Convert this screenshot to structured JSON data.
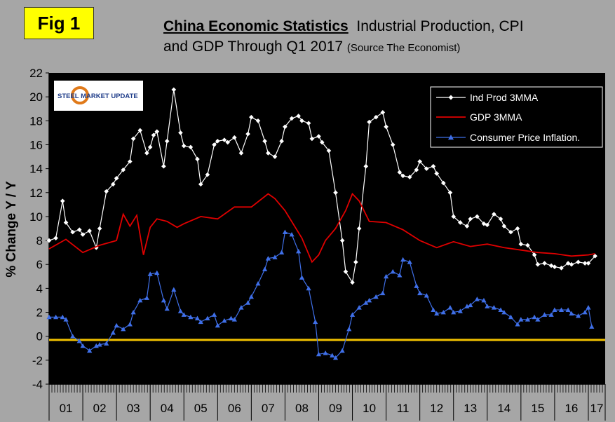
{
  "figure_label": "Fig 1",
  "title": {
    "main": "China Economic Statistics",
    "rest": "Industrial Production, CPI",
    "line2": "and GDP Through Q1 2017",
    "source": "(Source The Economist)"
  },
  "logo": {
    "text": "STEEL MARKET UPDATE"
  },
  "colors": {
    "page": "#a6a6a6",
    "plot": "#000000",
    "ind_prod": "#ffffff",
    "gdp": "#e00000",
    "cpi": "#3f6fe8",
    "zero_line": "#f2c200"
  },
  "chart_data": {
    "type": "line",
    "title": "China Economic Statistics Industrial Production, CPI and GDP Through Q1 2017",
    "ylabel": "% Change Y / Y",
    "xlabel": "",
    "ylim": [
      -4,
      22
    ],
    "yticks": [
      -4,
      -2,
      0,
      2,
      4,
      6,
      8,
      10,
      12,
      14,
      16,
      18,
      20,
      22
    ],
    "xlim": [
      2001,
      2017.5
    ],
    "year_labels": [
      "01",
      "02",
      "03",
      "04",
      "05",
      "06",
      "07",
      "08",
      "09",
      "10",
      "11",
      "12",
      "13",
      "14",
      "15",
      "16",
      "17"
    ],
    "grid": false,
    "legend_position": "top-right",
    "series": [
      {
        "name": "Ind Prod 3MMA",
        "marker": "diamond",
        "x": [
          2001.0,
          2001.2,
          2001.4,
          2001.5,
          2001.7,
          2001.9,
          2002.0,
          2002.2,
          2002.4,
          2002.5,
          2002.7,
          2002.9,
          2003.0,
          2003.2,
          2003.4,
          2003.5,
          2003.7,
          2003.9,
          2004.0,
          2004.1,
          2004.2,
          2004.4,
          2004.5,
          2004.7,
          2004.9,
          2005.0,
          2005.2,
          2005.4,
          2005.5,
          2005.7,
          2005.9,
          2006.0,
          2006.2,
          2006.3,
          2006.5,
          2006.7,
          2006.9,
          2007.0,
          2007.2,
          2007.4,
          2007.5,
          2007.7,
          2007.9,
          2008.0,
          2008.2,
          2008.4,
          2008.5,
          2008.7,
          2008.8,
          2009.0,
          2009.1,
          2009.3,
          2009.5,
          2009.7,
          2009.8,
          2010.0,
          2010.1,
          2010.2,
          2010.4,
          2010.5,
          2010.7,
          2010.9,
          2011.0,
          2011.2,
          2011.4,
          2011.5,
          2011.7,
          2011.9,
          2012.0,
          2012.2,
          2012.4,
          2012.5,
          2012.7,
          2012.9,
          2013.0,
          2013.2,
          2013.4,
          2013.5,
          2013.7,
          2013.9,
          2014.0,
          2014.2,
          2014.4,
          2014.5,
          2014.7,
          2014.9,
          2015.0,
          2015.2,
          2015.4,
          2015.5,
          2015.7,
          2015.9,
          2016.0,
          2016.2,
          2016.4,
          2016.5,
          2016.7,
          2016.9,
          2017.0,
          2017.2
        ],
        "values": [
          8.0,
          8.2,
          11.3,
          9.5,
          8.7,
          8.9,
          8.5,
          8.8,
          7.4,
          9.0,
          12.1,
          12.7,
          13.2,
          13.9,
          14.6,
          16.5,
          17.2,
          15.3,
          15.8,
          16.8,
          17.1,
          14.2,
          16.3,
          20.6,
          17.0,
          15.9,
          15.8,
          14.8,
          12.7,
          13.5,
          16.0,
          16.3,
          16.4,
          16.2,
          16.6,
          15.3,
          16.9,
          18.3,
          18.0,
          16.3,
          15.3,
          15.0,
          16.3,
          17.5,
          18.2,
          18.4,
          18.0,
          17.8,
          16.5,
          16.7,
          16.2,
          15.5,
          12.0,
          8.0,
          5.4,
          4.5,
          6.2,
          9.0,
          14.2,
          17.9,
          18.3,
          18.7,
          17.5,
          16.0,
          13.7,
          13.4,
          13.3,
          13.9,
          14.6,
          14.0,
          14.2,
          13.6,
          12.8,
          12.0,
          10.0,
          9.5,
          9.2,
          9.8,
          10.0,
          9.4,
          9.3,
          10.2,
          9.8,
          9.2,
          8.7,
          9.0,
          7.7,
          7.6,
          6.8,
          6.0,
          6.1,
          5.9,
          5.8,
          5.7,
          6.1,
          6.0,
          6.2,
          6.1,
          6.1,
          6.7
        ]
      },
      {
        "name": "GDP 3MMA",
        "marker": "none",
        "x": [
          2001.0,
          2001.5,
          2002.0,
          2002.5,
          2003.0,
          2003.2,
          2003.4,
          2003.6,
          2003.8,
          2004.0,
          2004.2,
          2004.5,
          2004.8,
          2005.0,
          2005.5,
          2006.0,
          2006.5,
          2007.0,
          2007.5,
          2007.7,
          2008.0,
          2008.5,
          2008.8,
          2009.0,
          2009.2,
          2009.5,
          2009.8,
          2010.0,
          2010.2,
          2010.5,
          2011.0,
          2011.5,
          2012.0,
          2012.5,
          2013.0,
          2013.5,
          2014.0,
          2014.5,
          2015.0,
          2015.5,
          2016.0,
          2016.5,
          2017.0,
          2017.2
        ],
        "values": [
          7.3,
          8.1,
          7.0,
          7.6,
          8.0,
          10.2,
          9.2,
          10.1,
          6.8,
          9.1,
          9.8,
          9.6,
          9.1,
          9.4,
          10.0,
          9.8,
          10.8,
          10.8,
          11.9,
          11.5,
          10.5,
          8.2,
          6.2,
          6.8,
          8.0,
          9.0,
          10.5,
          11.9,
          11.3,
          9.6,
          9.5,
          8.9,
          8.0,
          7.4,
          7.9,
          7.5,
          7.7,
          7.4,
          7.2,
          7.0,
          6.9,
          6.7,
          6.8,
          6.9
        ]
      },
      {
        "name": "Consumer Price Inflation.",
        "marker": "triangle",
        "x": [
          2001.0,
          2001.2,
          2001.4,
          2001.5,
          2001.7,
          2001.9,
          2002.0,
          2002.2,
          2002.4,
          2002.5,
          2002.7,
          2002.9,
          2003.0,
          2003.2,
          2003.4,
          2003.5,
          2003.7,
          2003.9,
          2004.0,
          2004.2,
          2004.4,
          2004.5,
          2004.7,
          2004.9,
          2005.0,
          2005.2,
          2005.4,
          2005.5,
          2005.7,
          2005.9,
          2006.0,
          2006.2,
          2006.4,
          2006.5,
          2006.7,
          2006.9,
          2007.0,
          2007.2,
          2007.4,
          2007.5,
          2007.7,
          2007.9,
          2008.0,
          2008.2,
          2008.4,
          2008.5,
          2008.7,
          2008.9,
          2009.0,
          2009.2,
          2009.4,
          2009.5,
          2009.7,
          2009.9,
          2010.0,
          2010.2,
          2010.4,
          2010.5,
          2010.7,
          2010.9,
          2011.0,
          2011.2,
          2011.4,
          2011.5,
          2011.7,
          2011.9,
          2012.0,
          2012.2,
          2012.4,
          2012.5,
          2012.7,
          2012.9,
          2013.0,
          2013.2,
          2013.4,
          2013.5,
          2013.7,
          2013.9,
          2014.0,
          2014.2,
          2014.4,
          2014.5,
          2014.7,
          2014.9,
          2015.0,
          2015.2,
          2015.4,
          2015.5,
          2015.7,
          2015.9,
          2016.0,
          2016.2,
          2016.4,
          2016.5,
          2016.7,
          2016.9,
          2017.0,
          2017.1
        ],
        "values": [
          1.6,
          1.6,
          1.6,
          1.4,
          0.0,
          -0.4,
          -0.8,
          -1.2,
          -0.8,
          -0.7,
          -0.6,
          0.3,
          0.9,
          0.6,
          1.0,
          2.0,
          3.0,
          3.2,
          5.2,
          5.3,
          3.0,
          2.3,
          3.9,
          2.1,
          1.8,
          1.6,
          1.5,
          1.2,
          1.5,
          1.8,
          0.9,
          1.3,
          1.5,
          1.4,
          2.4,
          2.8,
          3.3,
          4.4,
          5.6,
          6.5,
          6.6,
          7.0,
          8.7,
          8.5,
          7.1,
          4.9,
          4.0,
          1.2,
          -1.5,
          -1.4,
          -1.6,
          -1.8,
          -1.2,
          0.6,
          1.8,
          2.4,
          2.8,
          3.0,
          3.3,
          3.6,
          5.0,
          5.4,
          5.1,
          6.4,
          6.2,
          4.2,
          3.6,
          3.4,
          2.2,
          1.9,
          2.0,
          2.4,
          2.0,
          2.1,
          2.5,
          2.6,
          3.1,
          3.0,
          2.5,
          2.4,
          2.2,
          2.0,
          1.6,
          1.0,
          1.4,
          1.4,
          1.6,
          1.4,
          1.8,
          1.8,
          2.2,
          2.2,
          2.2,
          1.9,
          1.7,
          2.0,
          2.4,
          0.8
        ]
      }
    ],
    "reference_line": {
      "y": -0.3,
      "color": "#f2c200"
    }
  }
}
